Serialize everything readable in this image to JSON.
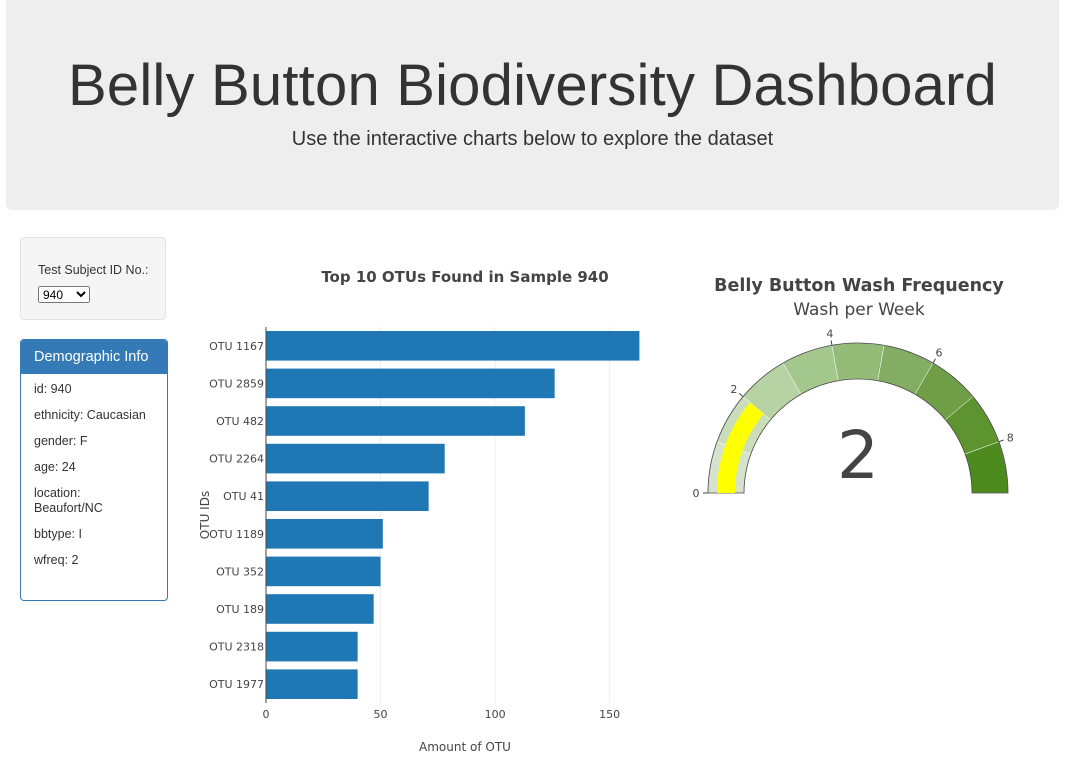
{
  "header": {
    "title": "Belly Button Biodiversity Dashboard",
    "subtitle": "Use the interactive charts below to explore the dataset"
  },
  "selector": {
    "label": "Test Subject ID No.:",
    "selected": "940"
  },
  "demographics": {
    "title": "Demographic Info",
    "rows": [
      "id: 940",
      "ethnicity: Caucasian",
      "gender: F",
      "age: 24",
      "location: Beaufort/NC",
      "bbtype: I",
      "wfreq: 2"
    ]
  },
  "colors": {
    "bar": "#1f77b4",
    "panel": "#337ab7",
    "gauge_needle": "#ffff00"
  },
  "chart_data": [
    {
      "type": "bar",
      "orientation": "horizontal",
      "title": "Top 10 OTUs Found in Sample 940",
      "xlabel": "Amount of OTU",
      "ylabel": "OTU IDs",
      "xlim": [
        0,
        160
      ],
      "xticks": [
        0,
        50,
        100,
        150
      ],
      "categories": [
        "OTU 1167",
        "OTU 2859",
        "OTU 482",
        "OTU 2264",
        "OTU 41",
        "OTU 1189",
        "OTU 352",
        "OTU 189",
        "OTU 2318",
        "OTU 1977"
      ],
      "values": [
        163,
        126,
        113,
        78,
        71,
        51,
        50,
        47,
        40,
        40
      ]
    },
    {
      "type": "gauge",
      "title": "Belly Button Wash Frequency",
      "subtitle": "Wash per Week",
      "value": 2,
      "value_label": "2",
      "range": [
        0,
        9
      ],
      "ticks": [
        0,
        2,
        4,
        6,
        8
      ],
      "band_colors": [
        "#d6e3cc",
        "#c9ddbb",
        "#b7d3a3",
        "#a4c78d",
        "#94bb78",
        "#83ad63",
        "#6f9e47",
        "#5e942f",
        "#4e8b1e"
      ]
    }
  ]
}
